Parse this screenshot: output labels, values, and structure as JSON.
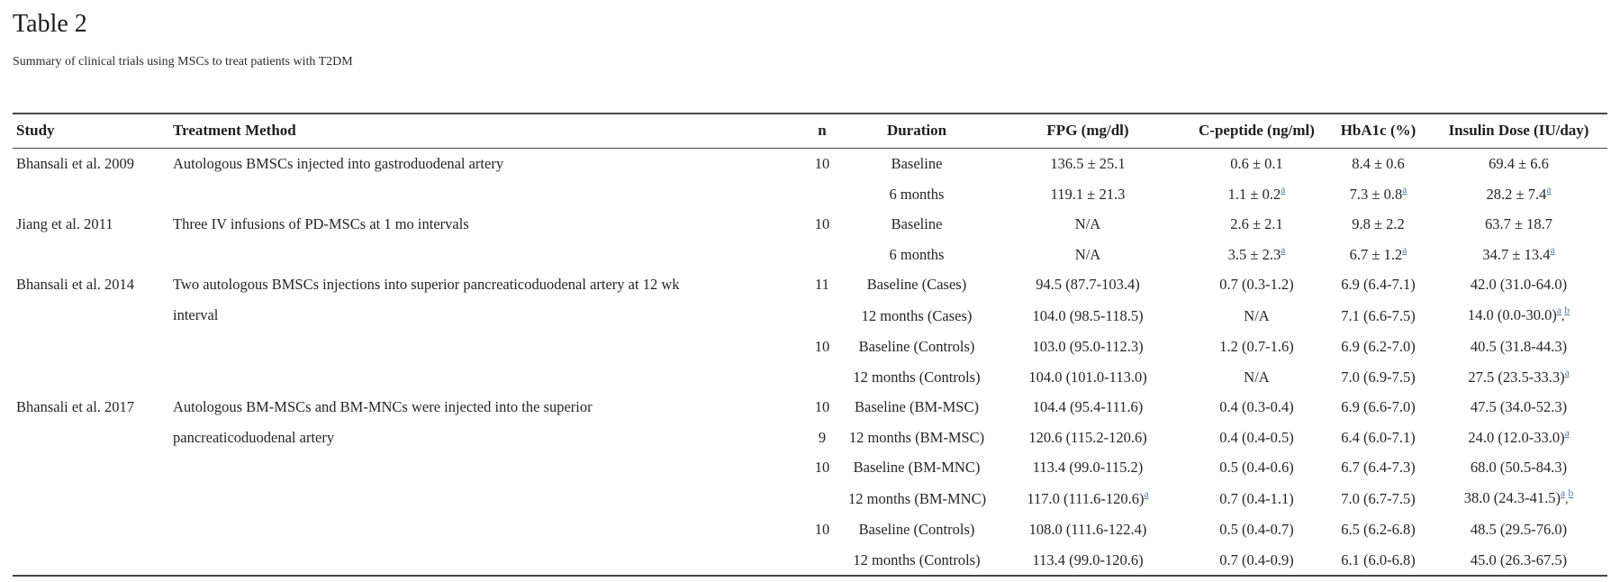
{
  "page": {
    "title": "Table 2",
    "subtitle": "Summary of clinical trials using MSCs to treat patients with T2DM"
  },
  "colors": {
    "footnote_link": "#4d7cab",
    "rule": "#474747",
    "text": "#262626"
  },
  "table": {
    "columns": [
      {
        "key": "study",
        "label": "Study"
      },
      {
        "key": "treatment",
        "label": "Treatment Method"
      },
      {
        "key": "n",
        "label": "n"
      },
      {
        "key": "duration",
        "label": "Duration"
      },
      {
        "key": "fpg",
        "label": "FPG (mg/dl)"
      },
      {
        "key": "c_peptide",
        "label": "C-peptide (ng/ml)"
      },
      {
        "key": "hba1c",
        "label": "HbA1c (%)"
      },
      {
        "key": "insulin",
        "label": "Insulin Dose (IU/day)"
      }
    ],
    "groups": [
      {
        "study": "Bhansali et al. 2009",
        "treatment_lines": [
          "Autologous BMSCs injected into gastroduodenal artery"
        ],
        "rows": [
          {
            "n": "10",
            "duration": "Baseline",
            "fpg": {
              "text": "136.5 ± 25.1"
            },
            "c_peptide": {
              "text": "0.6 ± 0.1"
            },
            "hba1c": {
              "text": "8.4 ± 0.6"
            },
            "insulin": {
              "text": "69.4 ± 6.6"
            }
          },
          {
            "n": "",
            "duration": "6 months",
            "fpg": {
              "text": "119.1 ± 21.3"
            },
            "c_peptide": {
              "text": "1.1 ± 0.2",
              "sup": [
                "a"
              ]
            },
            "hba1c": {
              "text": "7.3 ± 0.8",
              "sup": [
                "a"
              ]
            },
            "insulin": {
              "text": "28.2 ± 7.4",
              "sup": [
                "a"
              ]
            }
          }
        ]
      },
      {
        "study": "Jiang et al. 2011",
        "treatment_lines": [
          "Three IV infusions of PD-MSCs at 1 mo intervals"
        ],
        "rows": [
          {
            "n": "10",
            "duration": "Baseline",
            "fpg": {
              "text": "N/A"
            },
            "c_peptide": {
              "text": "2.6 ± 2.1"
            },
            "hba1c": {
              "text": "9.8 ± 2.2"
            },
            "insulin": {
              "text": "63.7 ± 18.7"
            }
          },
          {
            "n": "",
            "duration": "6 months",
            "fpg": {
              "text": "N/A"
            },
            "c_peptide": {
              "text": "3.5 ± 2.3",
              "sup": [
                "a"
              ]
            },
            "hba1c": {
              "text": "6.7 ± 1.2",
              "sup": [
                "a"
              ]
            },
            "insulin": {
              "text": "34.7 ± 13.4",
              "sup": [
                "a"
              ]
            }
          }
        ]
      },
      {
        "study": "Bhansali et al. 2014",
        "treatment_lines": [
          "Two autologous BMSCs injections into superior pancreaticoduodenal artery at 12 wk",
          "interval"
        ],
        "rows": [
          {
            "n": "11",
            "duration": "Baseline (Cases)",
            "fpg": {
              "text": "94.5 (87.7-103.4)"
            },
            "c_peptide": {
              "text": "0.7 (0.3-1.2)"
            },
            "hba1c": {
              "text": "6.9 (6.4-7.1)"
            },
            "insulin": {
              "text": "42.0 (31.0-64.0)"
            }
          },
          {
            "n": "",
            "duration": "12 months (Cases)",
            "fpg": {
              "text": "104.0 (98.5-118.5)"
            },
            "c_peptide": {
              "text": "N/A"
            },
            "hba1c": {
              "text": "7.1 (6.6-7.5)"
            },
            "insulin": {
              "text": "14.0 (0.0-30.0)",
              "sup": [
                "a",
                "b"
              ]
            }
          },
          {
            "n": "10",
            "duration": "Baseline (Controls)",
            "fpg": {
              "text": "103.0 (95.0-112.3)"
            },
            "c_peptide": {
              "text": "1.2 (0.7-1.6)"
            },
            "hba1c": {
              "text": "6.9 (6.2-7.0)"
            },
            "insulin": {
              "text": "40.5 (31.8-44.3)"
            }
          },
          {
            "n": "",
            "duration": "12 months (Controls)",
            "fpg": {
              "text": "104.0 (101.0-113.0)"
            },
            "c_peptide": {
              "text": "N/A"
            },
            "hba1c": {
              "text": "7.0 (6.9-7.5)"
            },
            "insulin": {
              "text": "27.5 (23.5-33.3)",
              "sup": [
                "a"
              ]
            }
          }
        ]
      },
      {
        "study": "Bhansali et al. 2017",
        "treatment_lines": [
          "Autologous BM-MSCs and BM-MNCs were injected into the superior",
          "pancreaticoduodenal artery"
        ],
        "rows": [
          {
            "n": "10",
            "duration": "Baseline (BM-MSC)",
            "fpg": {
              "text": "104.4 (95.4-111.6)"
            },
            "c_peptide": {
              "text": "0.4 (0.3-0.4)"
            },
            "hba1c": {
              "text": "6.9 (6.6-7.0)"
            },
            "insulin": {
              "text": "47.5 (34.0-52.3)"
            }
          },
          {
            "n": "9",
            "duration": "12 months (BM-MSC)",
            "fpg": {
              "text": "120.6 (115.2-120.6)"
            },
            "c_peptide": {
              "text": "0.4 (0.4-0.5)"
            },
            "hba1c": {
              "text": "6.4 (6.0-7.1)"
            },
            "insulin": {
              "text": "24.0 (12.0-33.0)",
              "sup": [
                "a"
              ]
            }
          },
          {
            "n": "10",
            "duration": "Baseline (BM-MNC)",
            "fpg": {
              "text": "113.4 (99.0-115.2)"
            },
            "c_peptide": {
              "text": "0.5 (0.4-0.6)"
            },
            "hba1c": {
              "text": "6.7 (6.4-7.3)"
            },
            "insulin": {
              "text": "68.0 (50.5-84.3)"
            }
          },
          {
            "n": "",
            "duration": "12 months (BM-MNC)",
            "fpg": {
              "text": "117.0 (111.6-120.6)",
              "sup": [
                "a"
              ]
            },
            "c_peptide": {
              "text": "0.7 (0.4-1.1)"
            },
            "hba1c": {
              "text": "7.0 (6.7-7.5)"
            },
            "insulin": {
              "text": "38.0 (24.3-41.5)",
              "sup": [
                "a",
                "b"
              ]
            }
          },
          {
            "n": "10",
            "duration": "Baseline (Controls)",
            "fpg": {
              "text": "108.0 (111.6-122.4)"
            },
            "c_peptide": {
              "text": "0.5 (0.4-0.7)"
            },
            "hba1c": {
              "text": "6.5 (6.2-6.8)"
            },
            "insulin": {
              "text": "48.5 (29.5-76.0)"
            }
          },
          {
            "n": "",
            "duration": "12 months (Controls)",
            "fpg": {
              "text": "113.4 (99.0-120.6)"
            },
            "c_peptide": {
              "text": "0.7 (0.4-0.9)"
            },
            "hba1c": {
              "text": "6.1 (6.0-6.8)"
            },
            "insulin": {
              "text": "45.0 (26.3-67.5)"
            }
          }
        ]
      }
    ]
  }
}
